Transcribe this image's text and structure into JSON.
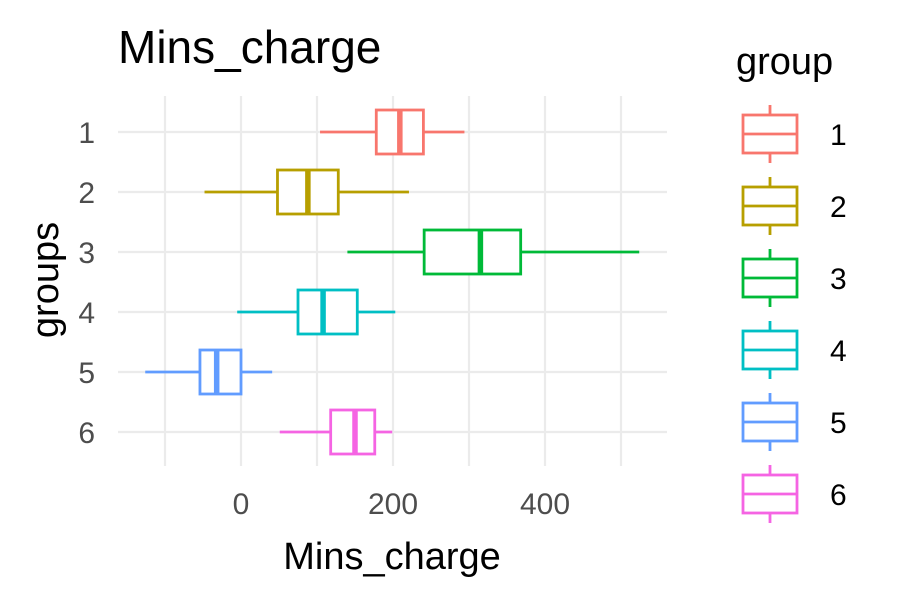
{
  "chart_data": {
    "type": "boxplot",
    "orientation": "horizontal",
    "title": "Mins_charge",
    "xlabel": "Mins_charge",
    "ylabel": "groups",
    "xlim": [
      -125,
      560
    ],
    "xticks": [
      0,
      200,
      400
    ],
    "categories": [
      "1",
      "2",
      "3",
      "4",
      "5",
      "6"
    ],
    "grid": true,
    "legend": {
      "title": "group",
      "position": "right"
    },
    "series": [
      {
        "name": "1",
        "color": "#F8766D",
        "whisker_low": 104,
        "q1": 178,
        "median": 209,
        "q3": 240,
        "whisker_high": 294
      },
      {
        "name": "2",
        "color": "#B79F00",
        "whisker_low": -48,
        "q1": 48,
        "median": 88,
        "q3": 128,
        "whisker_high": 221
      },
      {
        "name": "3",
        "color": "#00BA38",
        "whisker_low": 140,
        "q1": 241,
        "median": 315,
        "q3": 368,
        "whisker_high": 524
      },
      {
        "name": "4",
        "color": "#00BFC4",
        "whisker_low": -5,
        "q1": 75,
        "median": 108,
        "q3": 153,
        "whisker_high": 203
      },
      {
        "name": "5",
        "color": "#619CFF",
        "whisker_low": -126,
        "q1": -54,
        "median": -32,
        "q3": 0,
        "whisker_high": 41
      },
      {
        "name": "6",
        "color": "#F564E3",
        "whisker_low": 51,
        "q1": 118,
        "median": 150,
        "q3": 176,
        "whisker_high": 199
      }
    ]
  }
}
